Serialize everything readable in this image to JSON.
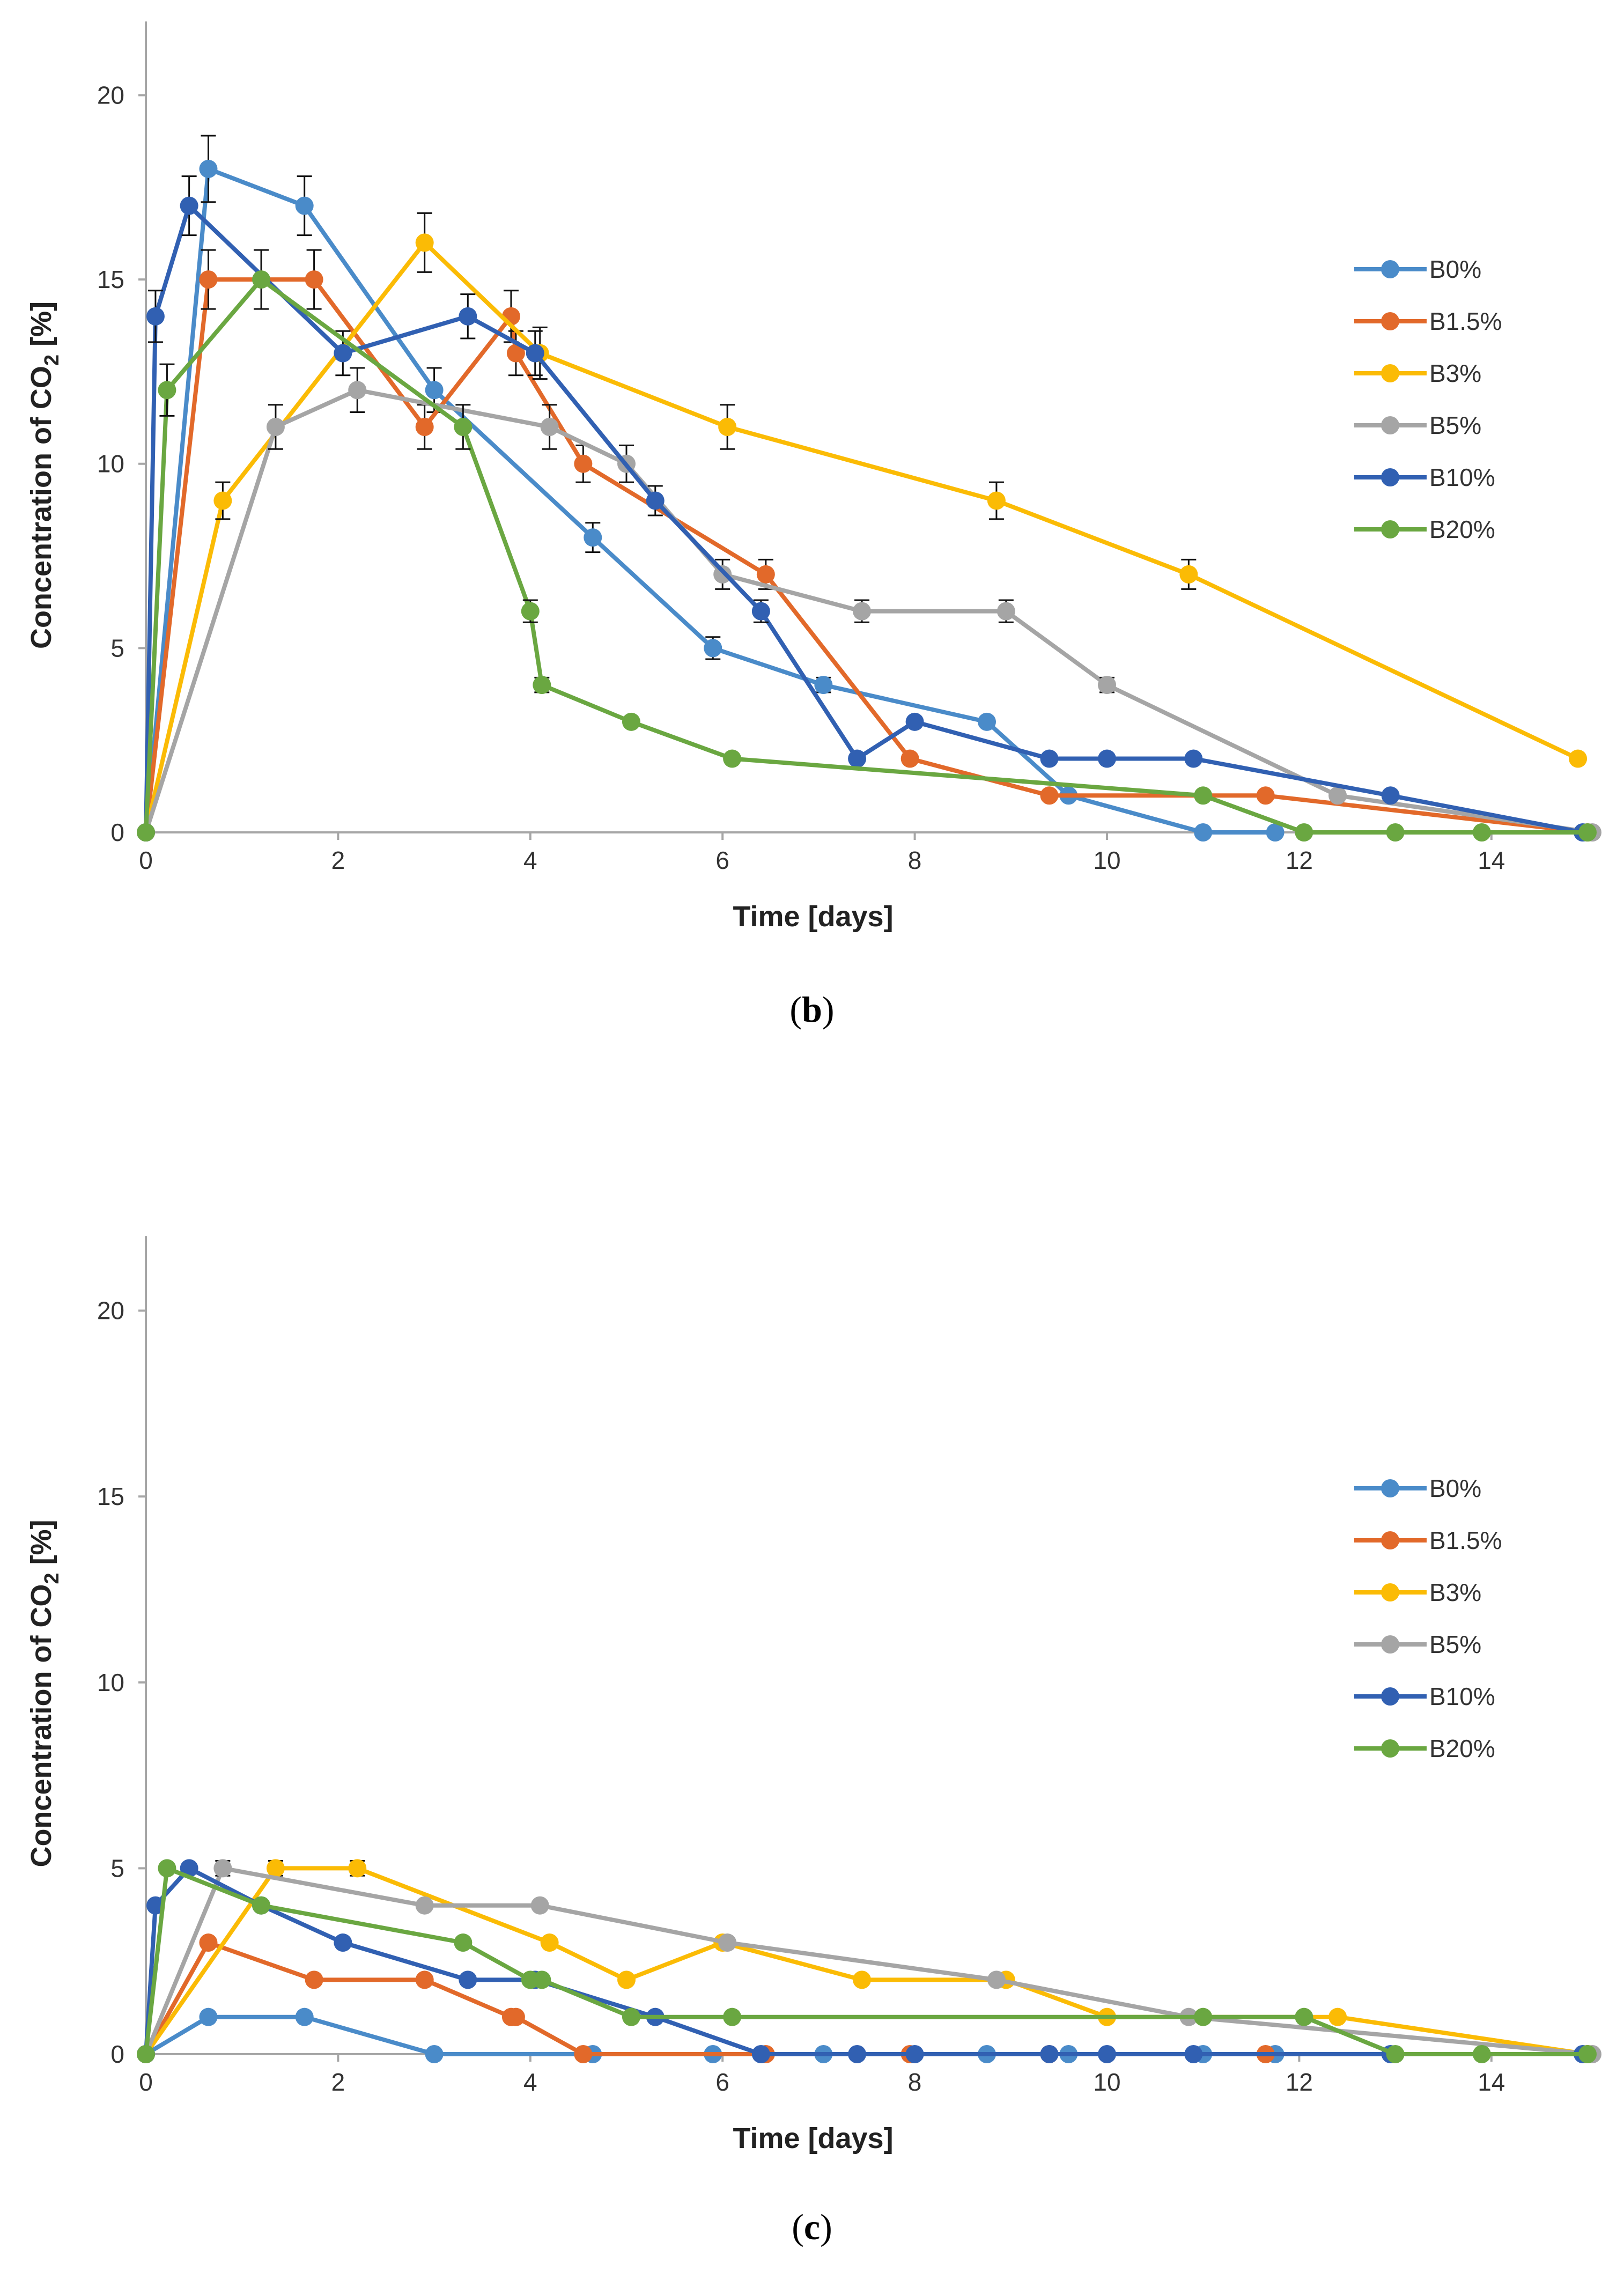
{
  "figure": {
    "panels": [
      "(b)",
      "(c)"
    ]
  },
  "chart_data": [
    {
      "type": "line",
      "panel_label": "(b)",
      "xlabel": "Time [days]",
      "ylabel_main": "Concentration of CO",
      "ylabel_sub": "2",
      "ylabel_unit": " [%]",
      "xlim": [
        0,
        15
      ],
      "ylim": [
        0,
        22
      ],
      "xticks": [
        0,
        2,
        4,
        6,
        8,
        10,
        12,
        14
      ],
      "yticks": [
        0,
        5,
        10,
        15,
        20
      ],
      "grid": false,
      "legend_position": "right",
      "series": [
        {
          "name": "B0%",
          "color": "#4a8bc9",
          "x": [
            0,
            0.65,
            1.65,
            3.0,
            4.65,
            5.9,
            7.05,
            8.75,
            9.6,
            11.0,
            11.75
          ],
          "y": [
            0,
            18,
            17,
            12,
            8,
            5,
            4,
            3,
            1,
            0,
            0
          ],
          "err": [
            0,
            0.9,
            0.8,
            0.6,
            0.4,
            0.3,
            0.2,
            0,
            0,
            0,
            0
          ]
        },
        {
          "name": "B1.5%",
          "color": "#e2692a",
          "x": [
            0,
            0.65,
            1.75,
            2.9,
            3.8,
            3.85,
            4.55,
            6.45,
            7.95,
            9.4,
            11.65,
            15.0
          ],
          "y": [
            0,
            15,
            15,
            11,
            14,
            13,
            10,
            7,
            2,
            1,
            1,
            0
          ],
          "err": [
            0,
            0.8,
            0.8,
            0.6,
            0.7,
            0.6,
            0.5,
            0.4,
            0,
            0,
            0,
            0
          ]
        },
        {
          "name": "B3%",
          "color": "#fbbb05",
          "x": [
            0,
            0.8,
            2.9,
            4.1,
            6.05,
            8.85,
            10.85,
            14.9
          ],
          "y": [
            0,
            9,
            16,
            13,
            11,
            9,
            7,
            2
          ],
          "err": [
            0,
            0.5,
            0.8,
            0.7,
            0.6,
            0.5,
            0.4,
            0
          ]
        },
        {
          "name": "B5%",
          "color": "#a5a5a5",
          "x": [
            0,
            1.35,
            2.2,
            4.2,
            5.0,
            6.0,
            7.45,
            8.95,
            10.0,
            12.4,
            15.05
          ],
          "y": [
            0,
            11,
            12,
            11,
            10,
            7,
            6,
            6,
            4,
            1,
            0
          ],
          "err": [
            0,
            0.6,
            0.6,
            0.6,
            0.5,
            0.4,
            0.3,
            0.3,
            0.2,
            0,
            0
          ]
        },
        {
          "name": "B10%",
          "color": "#3160b2",
          "x": [
            0,
            0.1,
            0.45,
            2.05,
            3.35,
            4.05,
            5.3,
            6.4,
            7.4,
            8.0,
            9.4,
            10.0,
            10.9,
            12.95,
            14.95
          ],
          "y": [
            0,
            14,
            17,
            13,
            14,
            13,
            9,
            6,
            2,
            3,
            2,
            2,
            2,
            1,
            0
          ],
          "err": [
            0,
            0.7,
            0.8,
            0.6,
            0.6,
            0.6,
            0.4,
            0.3,
            0,
            0,
            0,
            0,
            0,
            0,
            0
          ]
        },
        {
          "name": "B20%",
          "color": "#6aa741",
          "x": [
            0,
            0.22,
            1.2,
            3.3,
            4.0,
            4.12,
            5.05,
            6.1,
            11.0,
            12.05,
            13.0,
            13.9,
            15.0
          ],
          "y": [
            0,
            12,
            15,
            11,
            6,
            4,
            3,
            2,
            1,
            0,
            0,
            0,
            0
          ],
          "err": [
            0,
            0.7,
            0.8,
            0.6,
            0.3,
            0.2,
            0,
            0,
            0,
            0,
            0,
            0,
            0
          ]
        }
      ]
    },
    {
      "type": "line",
      "panel_label": "(c)",
      "xlabel": "Time [days]",
      "ylabel_main": "Concentration of CO",
      "ylabel_sub": "2",
      "ylabel_unit": " [%]",
      "xlim": [
        0,
        15
      ],
      "ylim": [
        0,
        22
      ],
      "xticks": [
        0,
        2,
        4,
        6,
        8,
        10,
        12,
        14
      ],
      "yticks": [
        0,
        5,
        10,
        15,
        20
      ],
      "grid": false,
      "legend_position": "right",
      "series": [
        {
          "name": "B0%",
          "color": "#4a8bc9",
          "x": [
            0,
            0.65,
            1.65,
            3.0,
            4.65,
            5.9,
            7.05,
            8.75,
            9.6,
            11.0,
            11.75
          ],
          "y": [
            0,
            1,
            1,
            0,
            0,
            0,
            0,
            0,
            0,
            0,
            0
          ],
          "err": [
            0,
            0,
            0,
            0,
            0,
            0,
            0,
            0,
            0,
            0,
            0
          ]
        },
        {
          "name": "B1.5%",
          "color": "#e2692a",
          "x": [
            0,
            0.65,
            1.75,
            2.9,
            3.8,
            3.85,
            4.55,
            6.45,
            7.95,
            9.4,
            11.65,
            15.0
          ],
          "y": [
            0,
            3,
            2,
            2,
            1,
            1,
            0,
            0,
            0,
            0,
            0,
            0
          ],
          "err": [
            0,
            0,
            0,
            0,
            0,
            0,
            0,
            0,
            0,
            0,
            0,
            0
          ]
        },
        {
          "name": "B3%",
          "color": "#fbbb05",
          "x": [
            0,
            1.35,
            2.2,
            4.2,
            5.0,
            6.0,
            7.45,
            8.95,
            10.0,
            12.4,
            15.0
          ],
          "y": [
            0,
            5,
            5,
            3,
            2,
            3,
            2,
            2,
            1,
            1,
            0
          ],
          "err": [
            0,
            0.2,
            0.2,
            0,
            0,
            0,
            0,
            0,
            0,
            0,
            0
          ]
        },
        {
          "name": "B5%",
          "color": "#a5a5a5",
          "x": [
            0,
            0.8,
            2.9,
            4.1,
            6.05,
            8.85,
            10.85,
            15.05
          ],
          "y": [
            0,
            5,
            4,
            4,
            3,
            2,
            1,
            0
          ],
          "err": [
            0,
            0.2,
            0,
            0.1,
            0,
            0,
            0,
            0
          ]
        },
        {
          "name": "B10%",
          "color": "#3160b2",
          "x": [
            0,
            0.1,
            0.45,
            1.2,
            2.05,
            3.35,
            4.05,
            5.3,
            6.4,
            7.4,
            8.0,
            9.4,
            10.0,
            10.9,
            12.95,
            14.95
          ],
          "y": [
            0,
            4,
            5,
            4,
            3,
            2,
            2,
            1,
            0,
            0,
            0,
            0,
            0,
            0,
            0,
            0
          ],
          "err": [
            0,
            0,
            0.1,
            0,
            0,
            0,
            0,
            0,
            0,
            0,
            0,
            0,
            0,
            0,
            0,
            0
          ]
        },
        {
          "name": "B20%",
          "color": "#6aa741",
          "x": [
            0,
            0.22,
            1.2,
            3.3,
            4.0,
            4.12,
            5.05,
            6.1,
            11.0,
            12.05,
            13.0,
            13.9,
            15.0
          ],
          "y": [
            0,
            5,
            4,
            3,
            2,
            2,
            1,
            1,
            1,
            1,
            0,
            0,
            0
          ],
          "err": [
            0,
            0.1,
            0,
            0,
            0,
            0,
            0,
            0,
            0,
            0,
            0,
            0,
            0
          ]
        }
      ]
    }
  ]
}
